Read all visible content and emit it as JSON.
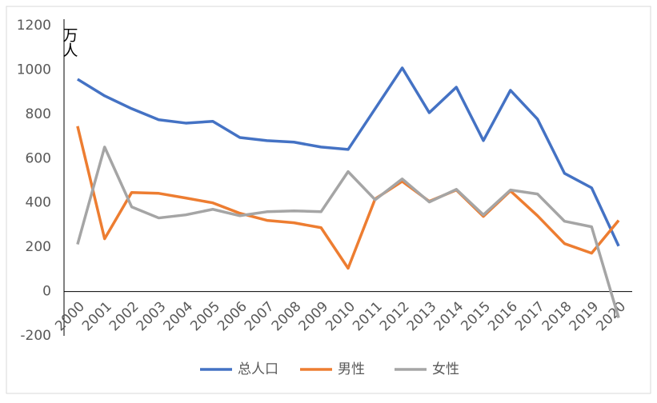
{
  "chart_data": {
    "type": "line",
    "y_label": "万人",
    "categories": [
      "2000",
      "2001",
      "2002",
      "2003",
      "2004",
      "2005",
      "2006",
      "2007",
      "2008",
      "2009",
      "2010",
      "2011",
      "2012",
      "2013",
      "2014",
      "2015",
      "2016",
      "2017",
      "2018",
      "2019",
      "2020"
    ],
    "series": [
      {
        "name": "总人口",
        "color": "#4472c4",
        "values": [
          958,
          883,
          825,
          775,
          760,
          768,
          695,
          681,
          674,
          652,
          641,
          825,
          1009,
          807,
          922,
          681,
          908,
          778,
          533,
          468,
          205
        ]
      },
      {
        "name": "男性",
        "color": "#ed7d31",
        "values": [
          746,
          238,
          447,
          443,
          422,
          400,
          353,
          321,
          310,
          288,
          105,
          418,
          497,
          407,
          458,
          339,
          454,
          342,
          216,
          173,
          321
        ]
      },
      {
        "name": "女性",
        "color": "#a5a5a5",
        "values": [
          213,
          652,
          382,
          332,
          346,
          371,
          342,
          360,
          364,
          360,
          541,
          414,
          508,
          404,
          461,
          346,
          458,
          440,
          317,
          292,
          -119
        ]
      }
    ],
    "ylim": [
      -200,
      1200
    ],
    "yticks": [
      -200,
      0,
      200,
      400,
      600,
      800,
      1000,
      1200
    ],
    "grid": false,
    "legend": "bottom"
  }
}
